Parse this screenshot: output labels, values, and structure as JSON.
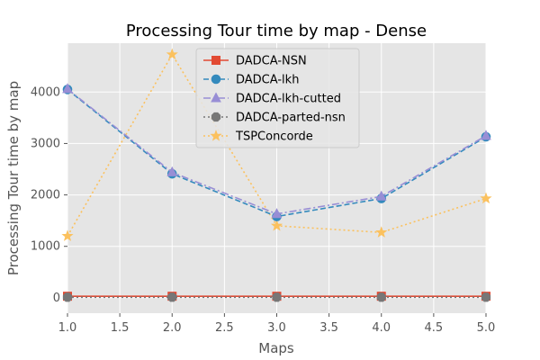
{
  "chart_data": {
    "type": "line",
    "title": "Processing Tour time by map - Dense",
    "xlabel": "Maps",
    "ylabel": "Processing Tour time by map",
    "xlim": [
      1.0,
      5.0
    ],
    "ylim": [
      -300,
      4950
    ],
    "x_ticks": [
      "1.0",
      "1.5",
      "2.0",
      "2.5",
      "3.0",
      "3.5",
      "4.0",
      "4.5",
      "5.0"
    ],
    "y_ticks": [
      "0",
      "1000",
      "2000",
      "3000",
      "4000"
    ],
    "grid": true,
    "legend_position": "top-center",
    "x": [
      1,
      2,
      3,
      4,
      5
    ],
    "series": [
      {
        "name": "DADCA-NSN",
        "values": [
          30,
          30,
          30,
          30,
          30
        ],
        "color": "#E24A33",
        "marker": "square",
        "dash": "solid"
      },
      {
        "name": "DADCA-lkh",
        "values": [
          4050,
          2410,
          1580,
          1930,
          3130
        ],
        "color": "#348ABD",
        "marker": "circle",
        "dash": "dashed"
      },
      {
        "name": "DADCA-lkh-cutted",
        "values": [
          4060,
          2440,
          1630,
          1970,
          3150
        ],
        "color": "#988ED5",
        "marker": "triangle",
        "dash": "dashdot"
      },
      {
        "name": "DADCA-parted-nsn",
        "values": [
          10,
          10,
          10,
          10,
          10
        ],
        "color": "#777777",
        "marker": "octagon",
        "dash": "dotted"
      },
      {
        "name": "TSPConcorde",
        "values": [
          1200,
          4730,
          1400,
          1270,
          1930
        ],
        "color": "#FBC15E",
        "marker": "star",
        "dash": "dotted"
      }
    ]
  }
}
